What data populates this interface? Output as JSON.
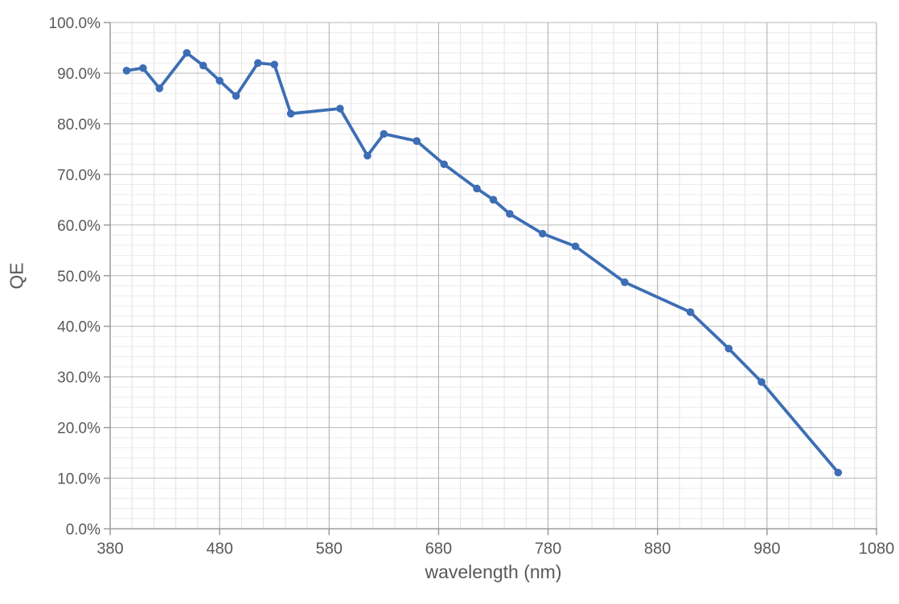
{
  "chart_data": {
    "type": "line",
    "title": "",
    "xlabel": "wavelength (nm)",
    "ylabel": "QE",
    "series_name": "QE",
    "legend": "none",
    "grid": "major+minor",
    "marker": "circle",
    "x": [
      395,
      410,
      425,
      450,
      465,
      480,
      495,
      515,
      530,
      545,
      590,
      615,
      630,
      660,
      685,
      715,
      730,
      745,
      775,
      805,
      850,
      910,
      945,
      975,
      1045
    ],
    "y_percent": [
      90.5,
      91.0,
      87.0,
      94.0,
      91.5,
      88.5,
      85.5,
      92.0,
      91.7,
      82.0,
      83.0,
      73.7,
      78.0,
      76.6,
      72.0,
      67.2,
      65.0,
      62.2,
      58.3,
      55.8,
      48.7,
      42.8,
      35.6,
      29.0,
      11.1
    ],
    "xlim": [
      380,
      1080
    ],
    "ylim_percent": [
      0,
      100
    ],
    "x_major_ticks": [
      380,
      480,
      580,
      680,
      780,
      880,
      980,
      1080
    ],
    "x_tick_labels": [
      "380",
      "480",
      "580",
      "680",
      "780",
      "880",
      "980",
      "1080"
    ],
    "y_major_ticks_percent": [
      0,
      10,
      20,
      30,
      40,
      50,
      60,
      70,
      80,
      90,
      100
    ],
    "y_tick_labels": [
      "0.0%",
      "10.0%",
      "20.0%",
      "30.0%",
      "40.0%",
      "50.0%",
      "60.0%",
      "70.0%",
      "80.0%",
      "90.0%",
      "100.0%"
    ],
    "x_minor_step": 20,
    "y_minor_step_percent": 2
  },
  "colors": {
    "line": "#3D6EB5",
    "marker": "#3D6EB5",
    "tick_text": "#595959",
    "axis_line": "#9B9B9B",
    "grid_major_vertical": "#A9A9A9",
    "grid_major_horizontal": "#B9B9B9",
    "grid_minor_vertical": "#E2E2E2",
    "grid_minor_horizontal": "#ECECEC",
    "background": "#FFFFFF"
  }
}
